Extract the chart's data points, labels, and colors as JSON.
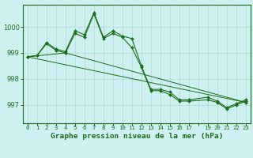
{
  "background_color": "#cff0f0",
  "grid_color": "#aaddcc",
  "line_color": "#1a6e1a",
  "marker_color": "#1a6e1a",
  "title": "Graphe pression niveau de la mer (hPa)",
  "xlim": [
    -0.5,
    23.5
  ],
  "ylim": [
    996.3,
    1000.85
  ],
  "yticks": [
    997,
    998,
    999,
    1000
  ],
  "xtick_labels": [
    "0",
    "1",
    "2",
    "3",
    "4",
    "5",
    "6",
    "7",
    "8",
    "9",
    "10",
    "11",
    "12",
    "13",
    "14",
    "15",
    "16",
    "17",
    "",
    "19",
    "20",
    "21",
    "22",
    "23"
  ],
  "series1_x": [
    0,
    1,
    2,
    3,
    4,
    5,
    6,
    7,
    8,
    9,
    10,
    11,
    12,
    13,
    14,
    15,
    16,
    17,
    19,
    20,
    21,
    22,
    23
  ],
  "series1_y": [
    998.85,
    998.9,
    999.35,
    999.1,
    999.0,
    999.75,
    999.6,
    1000.5,
    999.55,
    999.75,
    999.6,
    999.2,
    998.45,
    997.55,
    997.55,
    997.4,
    997.15,
    997.15,
    997.2,
    997.1,
    996.85,
    997.0,
    997.15
  ],
  "series2_x": [
    0,
    1,
    2,
    3,
    4,
    5,
    6,
    7,
    8,
    9,
    10,
    11,
    12,
    13,
    14,
    15,
    16,
    17,
    19,
    20,
    21,
    22,
    23
  ],
  "series2_y": [
    998.85,
    998.9,
    999.4,
    999.15,
    999.05,
    999.85,
    999.7,
    1000.55,
    999.6,
    999.85,
    999.65,
    999.55,
    998.5,
    997.6,
    997.6,
    997.5,
    997.2,
    997.2,
    997.3,
    997.15,
    996.9,
    997.05,
    997.2
  ],
  "line1_x": [
    0,
    23
  ],
  "line1_y": [
    998.85,
    997.1
  ],
  "line2_x": [
    0,
    4,
    23
  ],
  "line2_y": [
    998.85,
    999.0,
    997.1
  ]
}
